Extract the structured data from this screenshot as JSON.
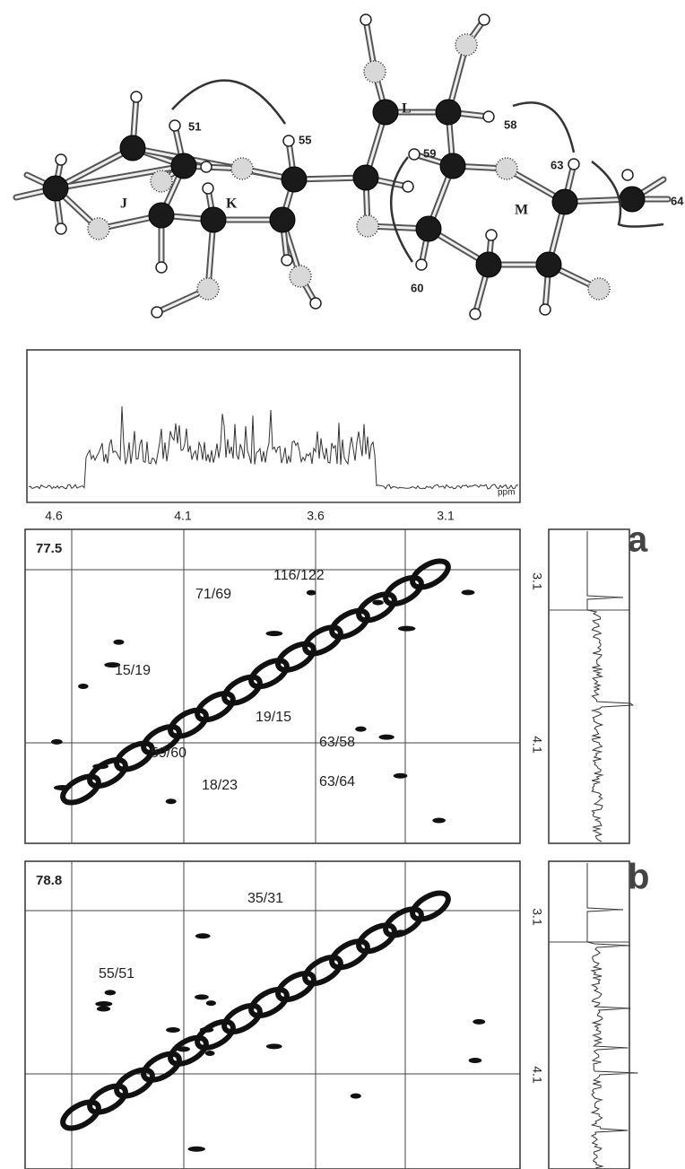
{
  "molecule": {
    "rings": [
      "J",
      "K",
      "L",
      "M"
    ],
    "atoms": [
      "51",
      "55",
      "59",
      "58",
      "60",
      "63",
      "64"
    ]
  },
  "spectrum_1d": {
    "ticks": [
      "4.6",
      "4.1",
      "3.6",
      "3.1"
    ],
    "unit": "ppm"
  },
  "panels": [
    {
      "label": "a",
      "plane": "77.5",
      "right_ticks": [
        "3.1",
        "4.1"
      ],
      "peaks": [
        "71/69",
        "116/122",
        "15/19",
        "19/15",
        "59/60",
        "63/58",
        "63/64",
        "18/23"
      ]
    },
    {
      "label": "b",
      "plane": "78.8",
      "right_ticks": [
        "3.1",
        "4.1"
      ],
      "peaks": [
        "35/31",
        "55/51"
      ]
    }
  ]
}
